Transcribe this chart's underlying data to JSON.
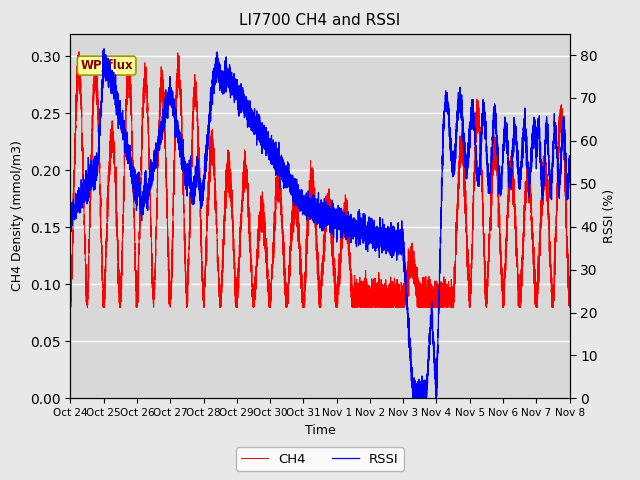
{
  "title": "LI7700 CH4 and RSSI",
  "xlabel": "Time",
  "ylabel_left": "CH4 Density (mmol/m3)",
  "ylabel_right": "RSSI (%)",
  "xlim": [
    0,
    15
  ],
  "ylim_left": [
    0.0,
    0.32
  ],
  "ylim_right": [
    0,
    85
  ],
  "yticks_left": [
    0.0,
    0.05,
    0.1,
    0.15,
    0.2,
    0.25,
    0.3
  ],
  "yticks_right": [
    0,
    10,
    20,
    30,
    40,
    50,
    60,
    70,
    80
  ],
  "xtick_labels": [
    "Oct 24",
    "Oct 25",
    "Oct 26",
    "Oct 27",
    "Oct 28",
    "Oct 29",
    "Oct 30",
    "Oct 31",
    "Nov 1",
    "Nov 2",
    "Nov 3",
    "Nov 4",
    "Nov 5",
    "Nov 6",
    "Nov 7",
    "Nov 8"
  ],
  "xtick_positions": [
    0,
    1,
    2,
    3,
    4,
    5,
    6,
    7,
    8,
    9,
    10,
    11,
    12,
    13,
    14,
    15
  ],
  "legend_label_ch4": "CH4",
  "legend_label_rssi": "RSSI",
  "ch4_color": "#FF0000",
  "rssi_color": "#0000FF",
  "fig_facecolor": "#E8E8E8",
  "plot_facecolor": "#D8D8D8",
  "annotation_text": "WP_flux",
  "annotation_box_facecolor": "#FFFF99",
  "annotation_box_edgecolor": "#999900",
  "annotation_text_color": "#880000"
}
